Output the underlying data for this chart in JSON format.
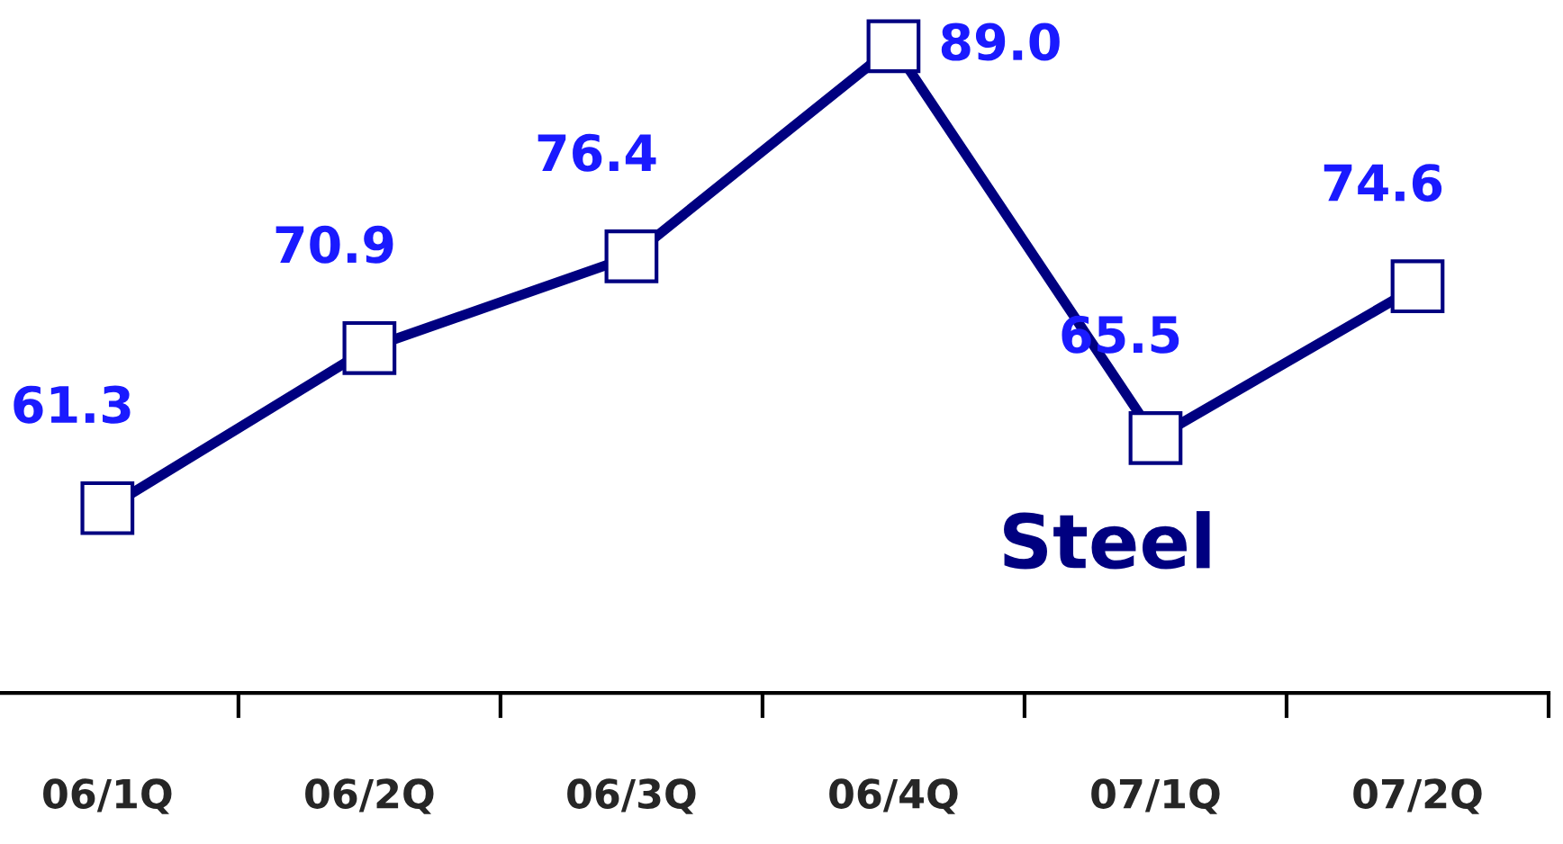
{
  "chart_data": {
    "type": "line",
    "categories": [
      "06/1Q",
      "06/2Q",
      "06/3Q",
      "06/4Q",
      "07/1Q",
      "07/2Q"
    ],
    "series": [
      {
        "name": "Steel",
        "color": "#000080",
        "values": [
          61.3,
          70.9,
          76.4,
          89.0,
          65.5,
          74.6
        ],
        "value_labels": [
          "61.3",
          "70.9",
          "76.4",
          "89.0",
          "65.5",
          "74.6"
        ]
      }
    ],
    "marker": "square",
    "line_style": "solid",
    "grid": false,
    "legend": false
  }
}
